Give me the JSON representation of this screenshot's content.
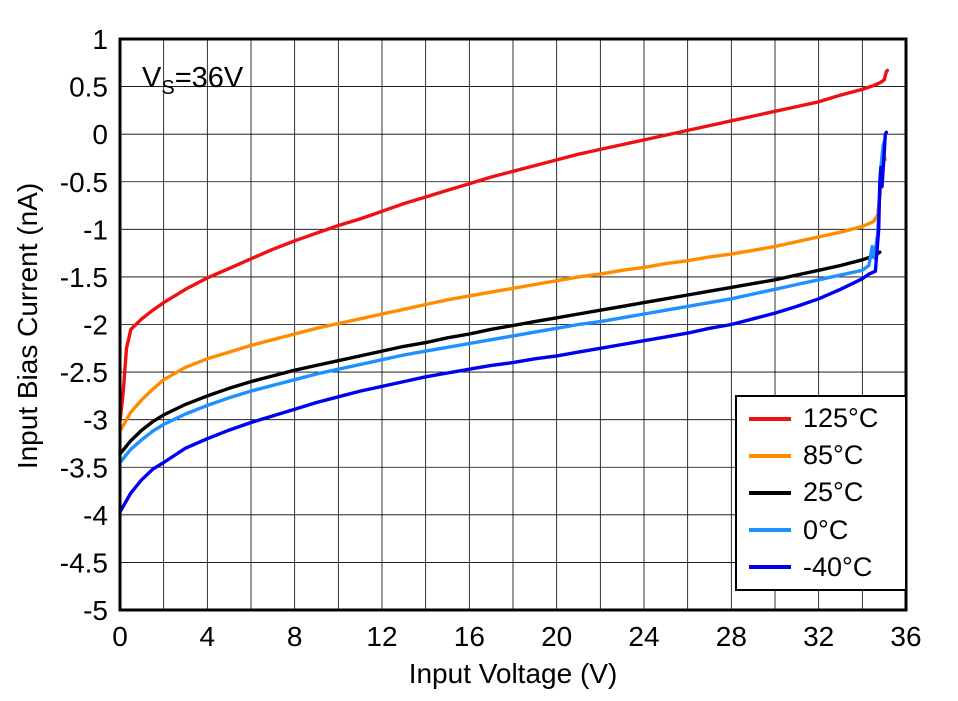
{
  "chart_data": {
    "type": "line",
    "title": "",
    "xlabel": "Input Voltage (V)",
    "ylabel": "Input Bias Current (nA)",
    "xlim": [
      0,
      36
    ],
    "ylim": [
      -5,
      1
    ],
    "xticks": [
      0,
      4,
      8,
      12,
      16,
      20,
      24,
      28,
      32,
      36
    ],
    "yticks": [
      1,
      0.5,
      0,
      -0.5,
      -1,
      -1.5,
      -2,
      -2.5,
      -3,
      -3.5,
      -4,
      -4.5,
      -5
    ],
    "x_grid_step": 2,
    "y_grid_step": 0.5,
    "grid": true,
    "legend_position": "bottom-right",
    "annotation": {
      "text": "VS=36V",
      "pre": "V",
      "sub": "S",
      "post": "=36V"
    },
    "series": [
      {
        "name": "125°C",
        "color": "#ee1111",
        "points": [
          [
            0,
            -3.02
          ],
          [
            0.15,
            -2.7
          ],
          [
            0.3,
            -2.25
          ],
          [
            0.5,
            -2.05
          ],
          [
            1,
            -1.94
          ],
          [
            1.5,
            -1.85
          ],
          [
            2,
            -1.77
          ],
          [
            3,
            -1.63
          ],
          [
            4,
            -1.51
          ],
          [
            5,
            -1.41
          ],
          [
            6,
            -1.31
          ],
          [
            7,
            -1.21
          ],
          [
            8,
            -1.12
          ],
          [
            9,
            -1.04
          ],
          [
            10,
            -0.96
          ],
          [
            11,
            -0.89
          ],
          [
            12,
            -0.81
          ],
          [
            13,
            -0.73
          ],
          [
            14,
            -0.66
          ],
          [
            15,
            -0.59
          ],
          [
            16,
            -0.52
          ],
          [
            17,
            -0.45
          ],
          [
            18,
            -0.39
          ],
          [
            19,
            -0.33
          ],
          [
            20,
            -0.27
          ],
          [
            21,
            -0.21
          ],
          [
            22,
            -0.16
          ],
          [
            23,
            -0.11
          ],
          [
            24,
            -0.06
          ],
          [
            25,
            -0.01
          ],
          [
            26,
            0.04
          ],
          [
            27,
            0.09
          ],
          [
            28,
            0.14
          ],
          [
            29,
            0.19
          ],
          [
            30,
            0.24
          ],
          [
            31,
            0.29
          ],
          [
            32,
            0.34
          ],
          [
            33,
            0.41
          ],
          [
            34,
            0.47
          ],
          [
            34.5,
            0.51
          ],
          [
            34.8,
            0.54
          ],
          [
            35,
            0.57
          ],
          [
            35.1,
            0.66
          ],
          [
            35.15,
            0.67
          ]
        ]
      },
      {
        "name": "85°C",
        "color": "#ff8c00",
        "points": [
          [
            0,
            -3.12
          ],
          [
            0.5,
            -2.92
          ],
          [
            1,
            -2.79
          ],
          [
            1.5,
            -2.68
          ],
          [
            2,
            -2.58
          ],
          [
            3,
            -2.45
          ],
          [
            4,
            -2.36
          ],
          [
            5,
            -2.29
          ],
          [
            6,
            -2.22
          ],
          [
            7,
            -2.16
          ],
          [
            8,
            -2.1
          ],
          [
            9,
            -2.04
          ],
          [
            10,
            -1.99
          ],
          [
            11,
            -1.94
          ],
          [
            12,
            -1.89
          ],
          [
            13,
            -1.84
          ],
          [
            14,
            -1.79
          ],
          [
            15,
            -1.74
          ],
          [
            16,
            -1.7
          ],
          [
            17,
            -1.66
          ],
          [
            18,
            -1.62
          ],
          [
            19,
            -1.58
          ],
          [
            20,
            -1.54
          ],
          [
            21,
            -1.5
          ],
          [
            22,
            -1.47
          ],
          [
            23,
            -1.43
          ],
          [
            24,
            -1.4
          ],
          [
            25,
            -1.36
          ],
          [
            26,
            -1.33
          ],
          [
            27,
            -1.29
          ],
          [
            28,
            -1.26
          ],
          [
            29,
            -1.22
          ],
          [
            30,
            -1.18
          ],
          [
            31,
            -1.13
          ],
          [
            32,
            -1.08
          ],
          [
            33,
            -1.03
          ],
          [
            34,
            -0.97
          ],
          [
            34.5,
            -0.92
          ],
          [
            34.7,
            -0.85
          ],
          [
            34.85,
            -0.55
          ],
          [
            34.95,
            -0.3
          ],
          [
            35,
            -0.22
          ],
          [
            35.05,
            -0.27
          ]
        ]
      },
      {
        "name": "25°C",
        "color": "#000000",
        "points": [
          [
            0,
            -3.36
          ],
          [
            0.5,
            -3.22
          ],
          [
            1,
            -3.11
          ],
          [
            1.5,
            -3.02
          ],
          [
            2,
            -2.95
          ],
          [
            3,
            -2.84
          ],
          [
            4,
            -2.75
          ],
          [
            5,
            -2.67
          ],
          [
            6,
            -2.6
          ],
          [
            7,
            -2.54
          ],
          [
            8,
            -2.48
          ],
          [
            9,
            -2.43
          ],
          [
            10,
            -2.38
          ],
          [
            11,
            -2.33
          ],
          [
            12,
            -2.28
          ],
          [
            13,
            -2.23
          ],
          [
            14,
            -2.19
          ],
          [
            15,
            -2.14
          ],
          [
            16,
            -2.1
          ],
          [
            17,
            -2.05
          ],
          [
            18,
            -2.01
          ],
          [
            19,
            -1.97
          ],
          [
            20,
            -1.93
          ],
          [
            21,
            -1.89
          ],
          [
            22,
            -1.85
          ],
          [
            23,
            -1.81
          ],
          [
            24,
            -1.77
          ],
          [
            25,
            -1.73
          ],
          [
            26,
            -1.69
          ],
          [
            27,
            -1.65
          ],
          [
            28,
            -1.61
          ],
          [
            29,
            -1.57
          ],
          [
            30,
            -1.53
          ],
          [
            31,
            -1.48
          ],
          [
            32,
            -1.43
          ],
          [
            33,
            -1.38
          ],
          [
            34,
            -1.32
          ],
          [
            34.5,
            -1.28
          ],
          [
            34.8,
            -1.24
          ]
        ]
      },
      {
        "name": "0°C",
        "color": "#1e90ff",
        "points": [
          [
            0,
            -3.45
          ],
          [
            0.5,
            -3.31
          ],
          [
            1,
            -3.21
          ],
          [
            1.5,
            -3.12
          ],
          [
            2,
            -3.05
          ],
          [
            3,
            -2.94
          ],
          [
            4,
            -2.85
          ],
          [
            5,
            -2.77
          ],
          [
            6,
            -2.7
          ],
          [
            7,
            -2.64
          ],
          [
            8,
            -2.58
          ],
          [
            9,
            -2.52
          ],
          [
            10,
            -2.47
          ],
          [
            11,
            -2.42
          ],
          [
            12,
            -2.37
          ],
          [
            13,
            -2.32
          ],
          [
            14,
            -2.28
          ],
          [
            15,
            -2.24
          ],
          [
            16,
            -2.2
          ],
          [
            17,
            -2.16
          ],
          [
            18,
            -2.12
          ],
          [
            19,
            -2.08
          ],
          [
            20,
            -2.04
          ],
          [
            21,
            -2.0
          ],
          [
            22,
            -1.97
          ],
          [
            23,
            -1.93
          ],
          [
            24,
            -1.89
          ],
          [
            25,
            -1.85
          ],
          [
            26,
            -1.81
          ],
          [
            27,
            -1.77
          ],
          [
            28,
            -1.73
          ],
          [
            29,
            -1.68
          ],
          [
            30,
            -1.63
          ],
          [
            31,
            -1.58
          ],
          [
            32,
            -1.53
          ],
          [
            33,
            -1.48
          ],
          [
            34,
            -1.43
          ],
          [
            34.3,
            -1.38
          ],
          [
            34.45,
            -1.18
          ],
          [
            34.55,
            -1.3
          ],
          [
            34.7,
            -1.05
          ],
          [
            34.85,
            -0.35
          ],
          [
            34.95,
            -0.12
          ],
          [
            35.0,
            -0.08
          ]
        ]
      },
      {
        "name": "-40°C",
        "color": "#0000ee",
        "points": [
          [
            0,
            -3.97
          ],
          [
            0.5,
            -3.77
          ],
          [
            1,
            -3.63
          ],
          [
            1.5,
            -3.52
          ],
          [
            2,
            -3.45
          ],
          [
            3,
            -3.3
          ],
          [
            4,
            -3.2
          ],
          [
            5,
            -3.11
          ],
          [
            6,
            -3.03
          ],
          [
            7,
            -2.96
          ],
          [
            8,
            -2.89
          ],
          [
            9,
            -2.82
          ],
          [
            10,
            -2.76
          ],
          [
            11,
            -2.7
          ],
          [
            12,
            -2.65
          ],
          [
            13,
            -2.6
          ],
          [
            14,
            -2.55
          ],
          [
            15,
            -2.51
          ],
          [
            16,
            -2.47
          ],
          [
            17,
            -2.43
          ],
          [
            18,
            -2.4
          ],
          [
            19,
            -2.36
          ],
          [
            20,
            -2.33
          ],
          [
            21,
            -2.29
          ],
          [
            22,
            -2.25
          ],
          [
            23,
            -2.21
          ],
          [
            24,
            -2.17
          ],
          [
            25,
            -2.13
          ],
          [
            26,
            -2.09
          ],
          [
            27,
            -2.04
          ],
          [
            28,
            -2.0
          ],
          [
            29,
            -1.94
          ],
          [
            30,
            -1.88
          ],
          [
            31,
            -1.81
          ],
          [
            32,
            -1.73
          ],
          [
            33,
            -1.63
          ],
          [
            34,
            -1.52
          ],
          [
            34.3,
            -1.47
          ],
          [
            34.6,
            -1.44
          ],
          [
            34.75,
            -1.0
          ],
          [
            34.8,
            -0.5
          ],
          [
            34.85,
            -0.35
          ],
          [
            34.9,
            -0.55
          ],
          [
            35.0,
            -0.2
          ],
          [
            35.05,
            0.0
          ],
          [
            35.1,
            0.02
          ]
        ]
      }
    ]
  }
}
